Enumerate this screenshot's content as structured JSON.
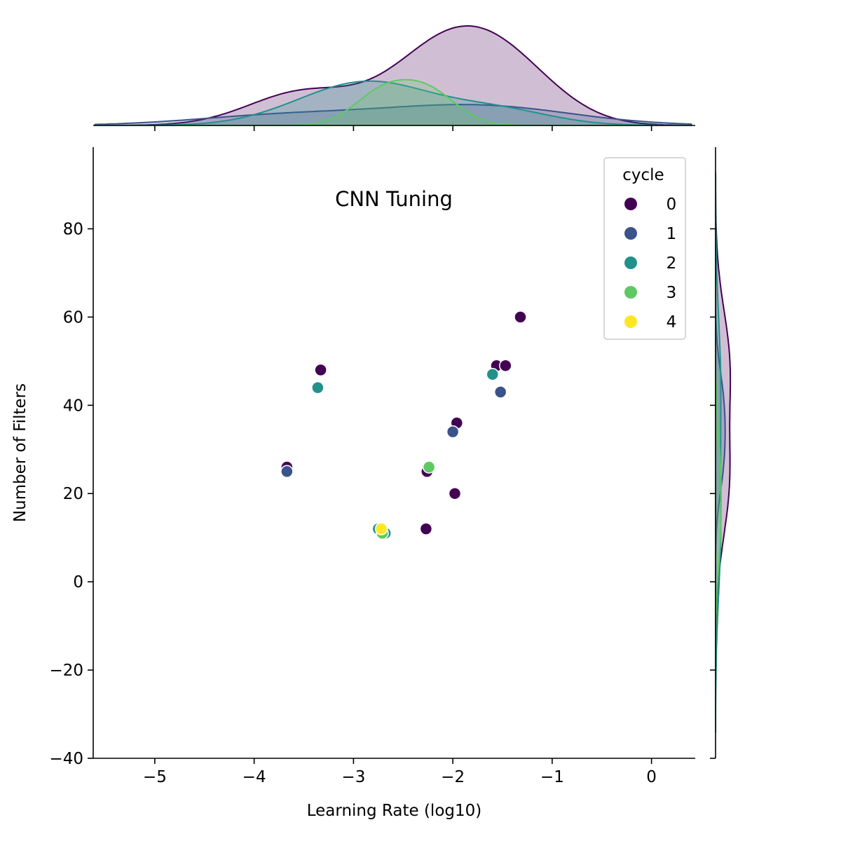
{
  "chart_data": {
    "type": "scatter",
    "title": "CNN Tuning",
    "xlabel": "Learning Rate (log10)",
    "ylabel": "Number of Filters",
    "xlim": [
      -5.62,
      0.44
    ],
    "ylim": [
      -40,
      98.5
    ],
    "x_ticks": [
      -5,
      -4,
      -3,
      -2,
      -1,
      0
    ],
    "x_tick_labels": [
      "−5",
      "−4",
      "−3",
      "−2",
      "−1",
      "0"
    ],
    "y_ticks": [
      -40,
      -20,
      0,
      20,
      40,
      60,
      80
    ],
    "y_tick_labels": [
      "−40",
      "−20",
      "0",
      "20",
      "40",
      "60",
      "80"
    ],
    "grid": false,
    "legend": {
      "title": "cycle",
      "placement": "top-right"
    },
    "marginal_plots": {
      "top": "kde",
      "right": "kde"
    },
    "series": [
      {
        "name": "0",
        "color": "#440154",
        "points": [
          [
            -1.32,
            60
          ],
          [
            -1.56,
            49
          ],
          [
            -1.47,
            49
          ],
          [
            -3.33,
            48
          ],
          [
            -1.96,
            36
          ],
          [
            -3.67,
            26
          ],
          [
            -2.26,
            25
          ],
          [
            -1.98,
            20
          ],
          [
            -2.27,
            12
          ]
        ]
      },
      {
        "name": "1",
        "color": "#3b528b",
        "points": [
          [
            -1.52,
            43
          ],
          [
            -2.0,
            34
          ],
          [
            -3.67,
            25
          ]
        ]
      },
      {
        "name": "2",
        "color": "#21918c",
        "points": [
          [
            -1.6,
            47
          ],
          [
            -3.36,
            44
          ],
          [
            -2.75,
            12
          ],
          [
            -2.68,
            11
          ]
        ]
      },
      {
        "name": "3",
        "color": "#5ec962",
        "points": [
          [
            -2.24,
            26
          ],
          [
            -2.71,
            11
          ]
        ]
      },
      {
        "name": "4",
        "color": "#fde725",
        "points": [
          [
            -2.72,
            12
          ]
        ]
      }
    ]
  }
}
